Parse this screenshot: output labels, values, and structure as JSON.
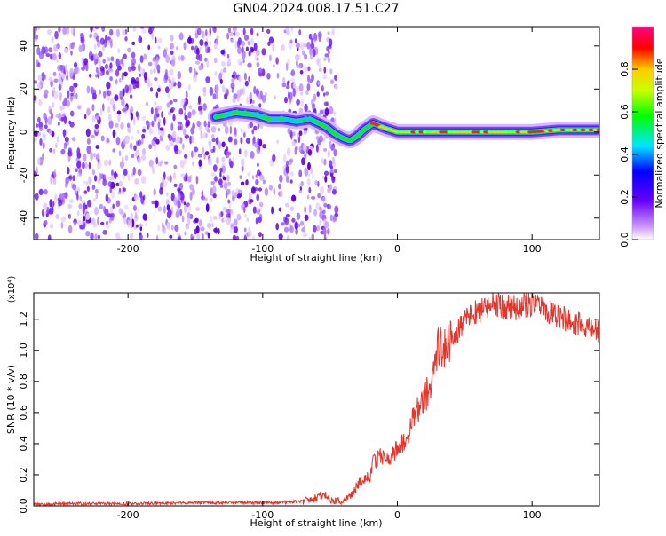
{
  "title": "GN04.2024.008.17.51.C27",
  "chart_data": [
    {
      "type": "heatmap",
      "xlabel": "Height of straight line (km)",
      "ylabel": "Frequency (Hz)",
      "xlim": [
        -270,
        150
      ],
      "ylim": [
        -50,
        49
      ],
      "xticks": [
        -200,
        -100,
        0,
        100
      ],
      "yticks": [
        -40,
        -20,
        0,
        20,
        40
      ],
      "colorbar": {
        "label": "Normalized spectral amplitude",
        "range": [
          0,
          1
        ],
        "ticks": [
          "0.0",
          "0.2",
          "0.4",
          "0.6",
          "0.8"
        ]
      },
      "ridge": {
        "x": [
          -135,
          -120,
          -105,
          -95,
          -85,
          -75,
          -65,
          -58,
          -52,
          -46,
          -40,
          -35,
          -30,
          -25,
          -18,
          -14,
          -10,
          -5,
          0,
          10,
          20,
          40,
          60,
          80,
          100,
          120,
          140,
          150
        ],
        "y": [
          7,
          9,
          8,
          6,
          6,
          5,
          6,
          4,
          2,
          -1,
          -3,
          -4,
          -2,
          1,
          4,
          3,
          2,
          1,
          0,
          0,
          0,
          0,
          0,
          0,
          0,
          1,
          1,
          1
        ]
      }
    },
    {
      "type": "line",
      "xlabel": "Height of straight line (km)",
      "ylabel": "SNR (10 * v/v)",
      "yscale_label": "(x10⁴)",
      "xlim": [
        -270,
        150
      ],
      "ylim": [
        0,
        1.37
      ],
      "xticks": [
        -200,
        -100,
        0,
        100
      ],
      "yticks": [
        0.0,
        0.2,
        0.4,
        0.6,
        0.8,
        1.0,
        1.2
      ],
      "color": "#e8332a",
      "series": [
        {
          "x": [
            -270,
            -240,
            -200,
            -160,
            -120,
            -90,
            -70,
            -60,
            -55,
            -50,
            -45,
            -40,
            -35,
            -30,
            -25,
            -20,
            -18,
            -15,
            -10,
            -5,
            0,
            5,
            10,
            15,
            20,
            25,
            28,
            30,
            35,
            40,
            45,
            50,
            60,
            70,
            80,
            90,
            100,
            110,
            120,
            130,
            140,
            150
          ],
          "y": [
            0.01,
            0.015,
            0.015,
            0.02,
            0.02,
            0.02,
            0.03,
            0.05,
            0.08,
            0.04,
            0.03,
            0.03,
            0.06,
            0.12,
            0.18,
            0.2,
            0.28,
            0.3,
            0.33,
            0.3,
            0.38,
            0.4,
            0.52,
            0.62,
            0.68,
            0.8,
            0.95,
            1.03,
            1.02,
            1.08,
            1.12,
            1.2,
            1.26,
            1.3,
            1.28,
            1.27,
            1.3,
            1.26,
            1.22,
            1.18,
            1.15,
            1.12
          ]
        }
      ]
    }
  ]
}
